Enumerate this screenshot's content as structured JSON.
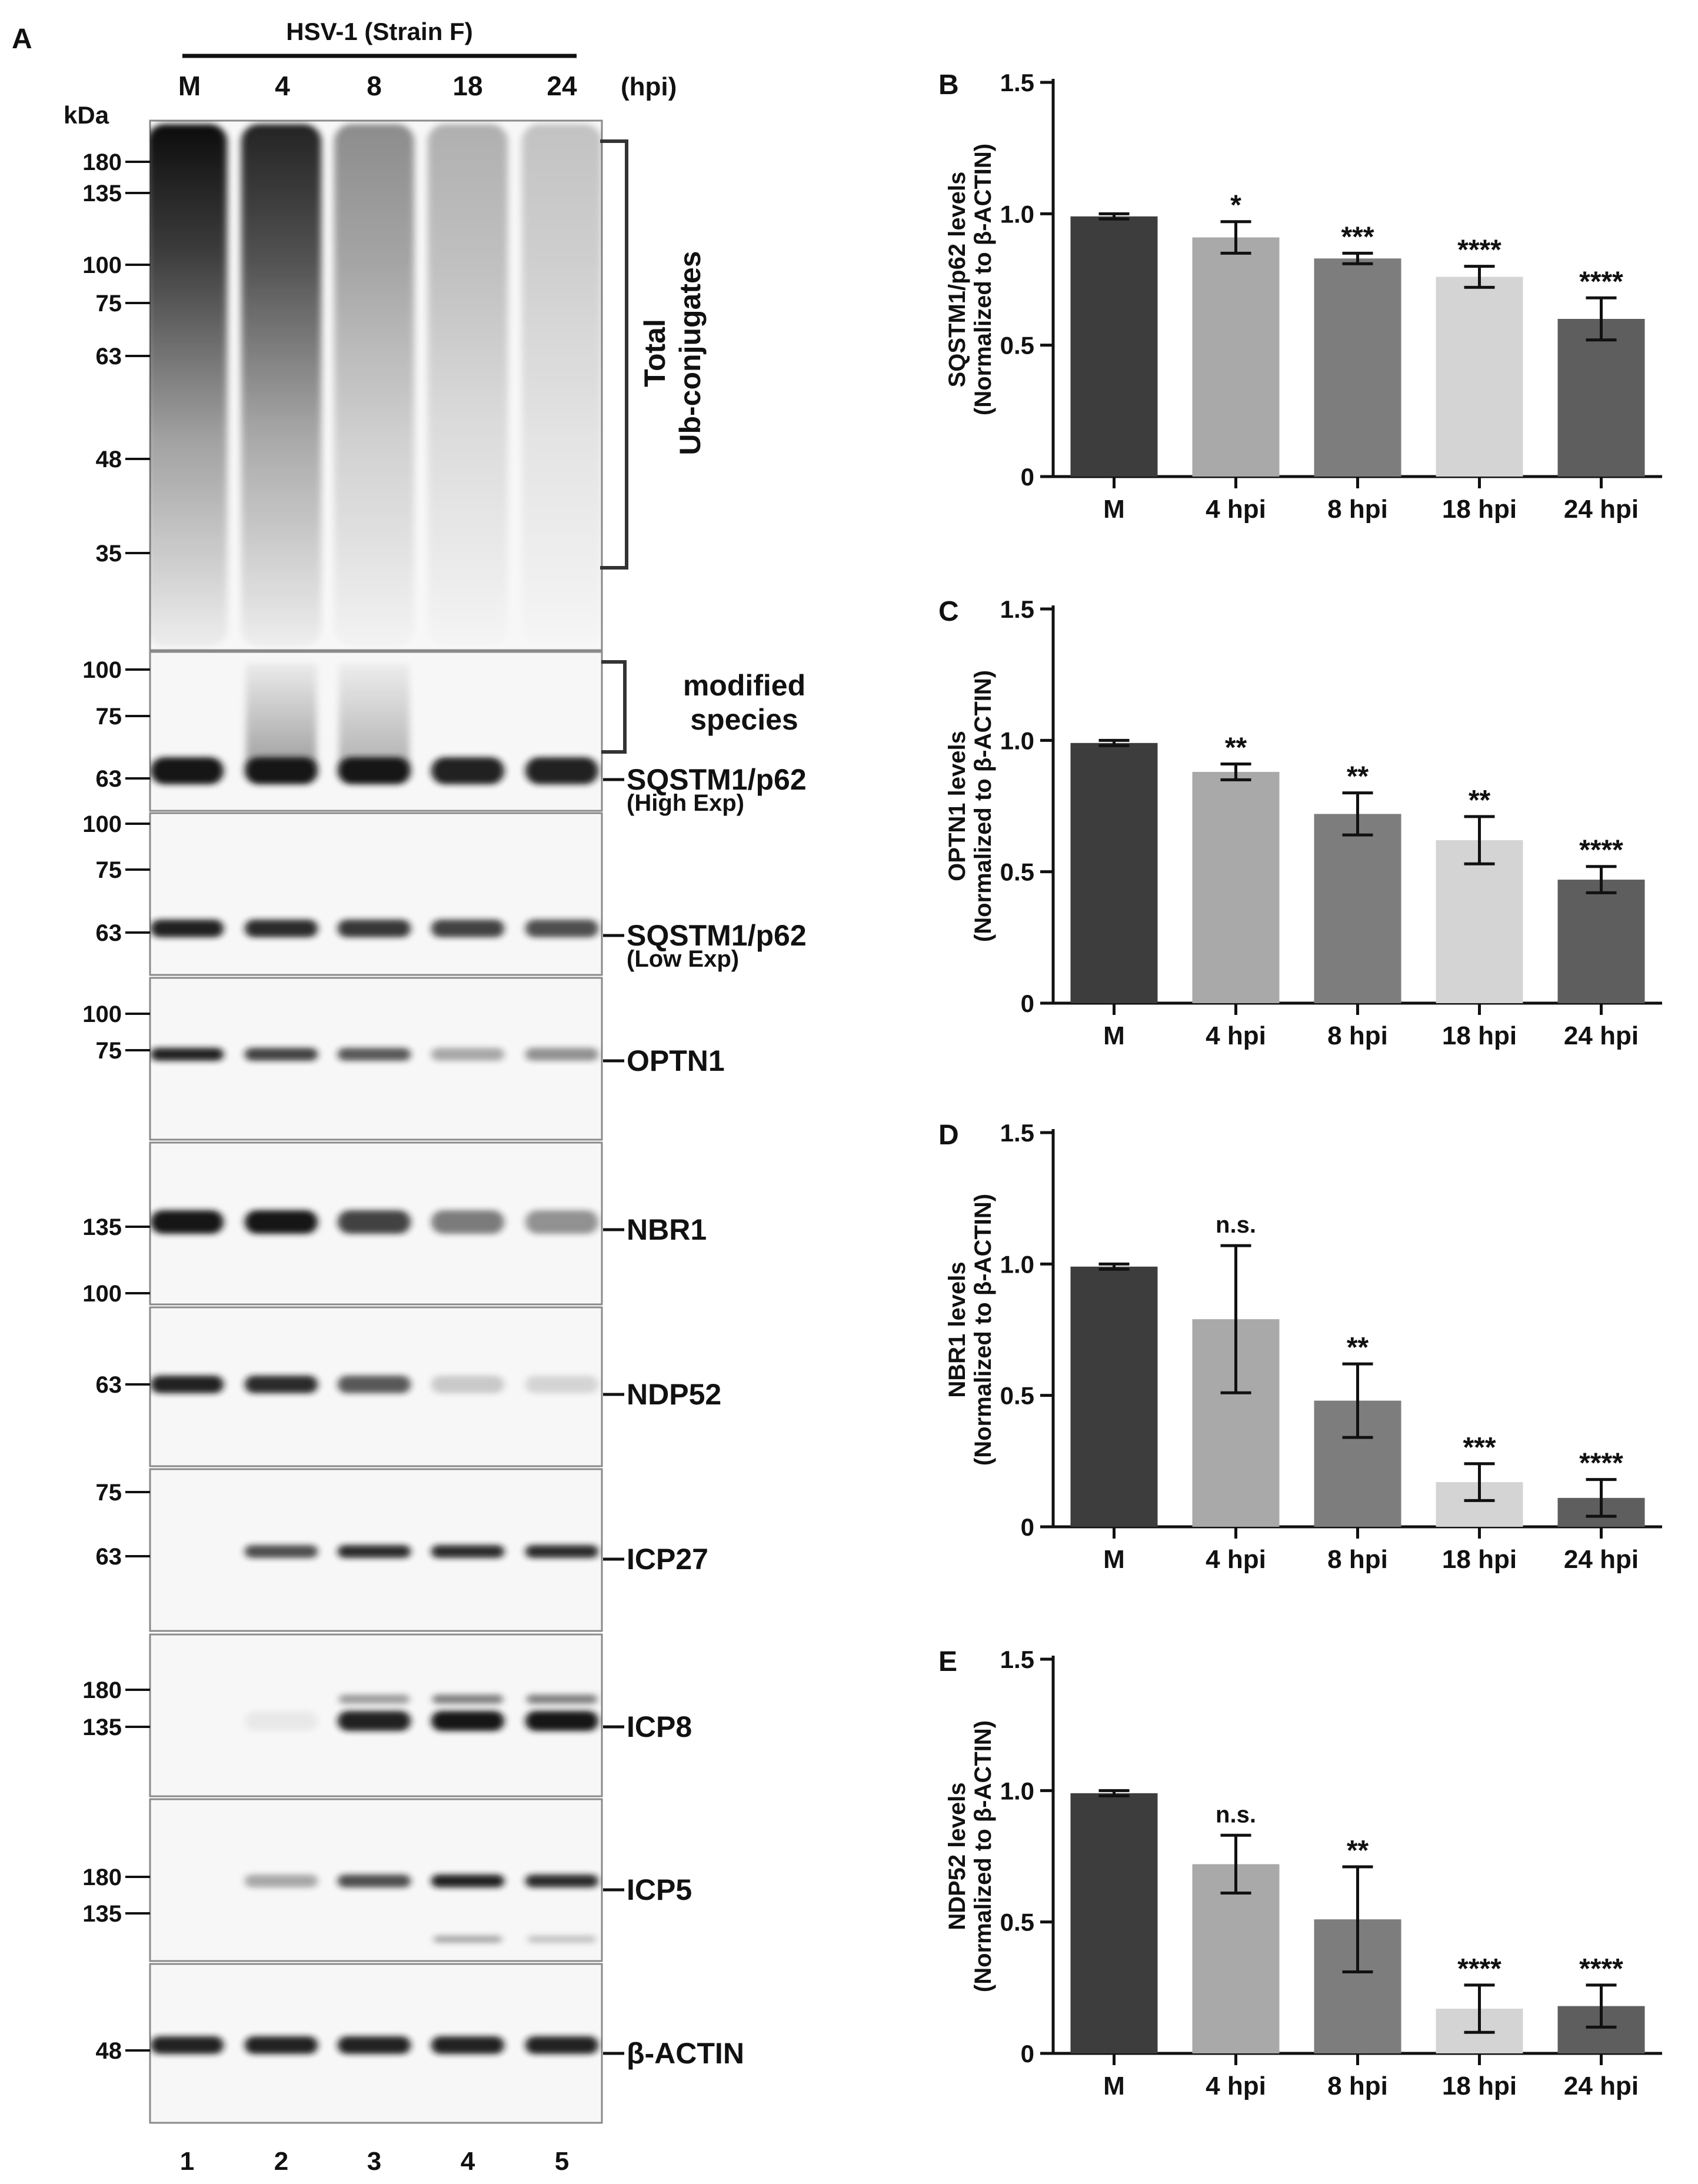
{
  "colors": {
    "ink": "#111111",
    "blot_bg": "#f7f7f7",
    "band": "#151515",
    "panel_border": "#8a8a8a"
  },
  "panel_a": {
    "letter": "A",
    "virus_label": "HSV-1 (Strain F)",
    "lane_headers": [
      "M",
      "4",
      "8",
      "18",
      "24"
    ],
    "hpi_label": "(hpi)",
    "kda_label": "kDa",
    "lane_numbers": [
      "1",
      "2",
      "3",
      "4",
      "5"
    ],
    "total_label_1": "Total",
    "total_label_2": "Ub-conjugates",
    "modified_label_1": "modified",
    "modified_label_2": "species",
    "blots": [
      {
        "name": "ub-conjugates",
        "markers": [
          "180",
          "135",
          "100",
          "75",
          "63",
          "48",
          "35"
        ],
        "label": "",
        "sublabel": "",
        "intensity": [
          1.0,
          0.9,
          0.45,
          0.3,
          0.22
        ]
      },
      {
        "name": "sqstm1-high",
        "markers": [
          "100",
          "75",
          "63"
        ],
        "label": "SQSTM1/p62",
        "sublabel": "(High Exp)",
        "intensity": [
          1.0,
          1.0,
          1.0,
          0.95,
          0.95
        ]
      },
      {
        "name": "sqstm1-low",
        "markers": [
          "100",
          "75",
          "63"
        ],
        "label": "SQSTM1/p62",
        "sublabel": "(Low Exp)",
        "intensity": [
          0.95,
          0.9,
          0.85,
          0.8,
          0.75
        ]
      },
      {
        "name": "optn1",
        "markers": [
          "100",
          "75"
        ],
        "label": "OPTN1",
        "sublabel": "",
        "intensity": [
          0.95,
          0.8,
          0.7,
          0.35,
          0.45
        ]
      },
      {
        "name": "nbr1",
        "markers": [
          "135",
          "100"
        ],
        "label": "NBR1",
        "sublabel": "",
        "intensity": [
          1.0,
          1.0,
          0.8,
          0.55,
          0.45
        ]
      },
      {
        "name": "ndp52",
        "markers": [
          "63"
        ],
        "label": "NDP52",
        "sublabel": "",
        "intensity": [
          0.95,
          0.9,
          0.7,
          0.2,
          0.15
        ]
      },
      {
        "name": "icp27",
        "markers": [
          "75",
          "63"
        ],
        "label": "ICP27",
        "sublabel": "",
        "intensity": [
          0.0,
          0.75,
          0.9,
          0.9,
          0.9
        ]
      },
      {
        "name": "icp8",
        "markers": [
          "180",
          "135"
        ],
        "label": "ICP8",
        "sublabel": "",
        "intensity": [
          0.0,
          0.06,
          0.95,
          1.0,
          1.0
        ]
      },
      {
        "name": "icp5",
        "markers": [
          "180",
          "135"
        ],
        "label": "ICP5",
        "sublabel": "",
        "intensity": [
          0.0,
          0.35,
          0.75,
          0.95,
          0.9
        ]
      },
      {
        "name": "beta-actin",
        "markers": [
          "48"
        ],
        "label": "β-ACTIN",
        "sublabel": "",
        "intensity": [
          0.95,
          0.95,
          0.95,
          0.95,
          0.95
        ]
      }
    ]
  },
  "chart_data": [
    {
      "letter": "B",
      "type": "bar",
      "title": "",
      "xlabel": "",
      "ylabel_1": "SQSTM1/p62 levels",
      "ylabel_2": "(Normalized to β-ACTIN)",
      "categories": [
        "M",
        "4 hpi",
        "8 hpi",
        "18 hpi",
        "24 hpi"
      ],
      "values": [
        0.99,
        0.91,
        0.83,
        0.76,
        0.6
      ],
      "errors": [
        0.01,
        0.06,
        0.02,
        0.04,
        0.08
      ],
      "significance": [
        "",
        "*",
        "***",
        "****",
        "****"
      ],
      "bar_colors": [
        "#3d3d3d",
        "#a9a9a9",
        "#7d7d7d",
        "#d4d4d4",
        "#5e5e5e"
      ],
      "ylim": [
        0,
        1.5
      ],
      "yticks": [
        "0",
        "0.5",
        "1.0",
        "1.5"
      ]
    },
    {
      "letter": "C",
      "type": "bar",
      "title": "",
      "xlabel": "",
      "ylabel_1": "OPTN1 levels",
      "ylabel_2": "(Normalized to β-ACTIN)",
      "categories": [
        "M",
        "4 hpi",
        "8 hpi",
        "18 hpi",
        "24 hpi"
      ],
      "values": [
        0.99,
        0.88,
        0.72,
        0.62,
        0.47
      ],
      "errors": [
        0.01,
        0.03,
        0.08,
        0.09,
        0.05
      ],
      "significance": [
        "",
        "**",
        "**",
        "**",
        "****"
      ],
      "bar_colors": [
        "#3d3d3d",
        "#a9a9a9",
        "#7d7d7d",
        "#d4d4d4",
        "#5e5e5e"
      ],
      "ylim": [
        0,
        1.5
      ],
      "yticks": [
        "0",
        "0.5",
        "1.0",
        "1.5"
      ]
    },
    {
      "letter": "D",
      "type": "bar",
      "title": "",
      "xlabel": "",
      "ylabel_1": "NBR1 levels",
      "ylabel_2": "(Normalized to β-ACTIN)",
      "categories": [
        "M",
        "4 hpi",
        "8 hpi",
        "18 hpi",
        "24 hpi"
      ],
      "values": [
        0.99,
        0.79,
        0.48,
        0.17,
        0.11
      ],
      "errors": [
        0.01,
        0.28,
        0.14,
        0.07,
        0.07
      ],
      "significance": [
        "",
        "n.s.",
        "**",
        "***",
        "****"
      ],
      "bar_colors": [
        "#3d3d3d",
        "#a9a9a9",
        "#7d7d7d",
        "#d4d4d4",
        "#5e5e5e"
      ],
      "ylim": [
        0,
        1.5
      ],
      "yticks": [
        "0",
        "0.5",
        "1.0",
        "1.5"
      ]
    },
    {
      "letter": "E",
      "type": "bar",
      "title": "",
      "xlabel": "",
      "ylabel_1": "NDP52 levels",
      "ylabel_2": "(Normalized to β-ACTIN)",
      "categories": [
        "M",
        "4 hpi",
        "8 hpi",
        "18 hpi",
        "24 hpi"
      ],
      "values": [
        0.99,
        0.72,
        0.51,
        0.17,
        0.18
      ],
      "errors": [
        0.01,
        0.11,
        0.2,
        0.09,
        0.08
      ],
      "significance": [
        "",
        "n.s.",
        "**",
        "****",
        "****"
      ],
      "bar_colors": [
        "#3d3d3d",
        "#a9a9a9",
        "#7d7d7d",
        "#d4d4d4",
        "#5e5e5e"
      ],
      "ylim": [
        0,
        1.5
      ],
      "yticks": [
        "0",
        "0.5",
        "1.0",
        "1.5"
      ]
    }
  ]
}
